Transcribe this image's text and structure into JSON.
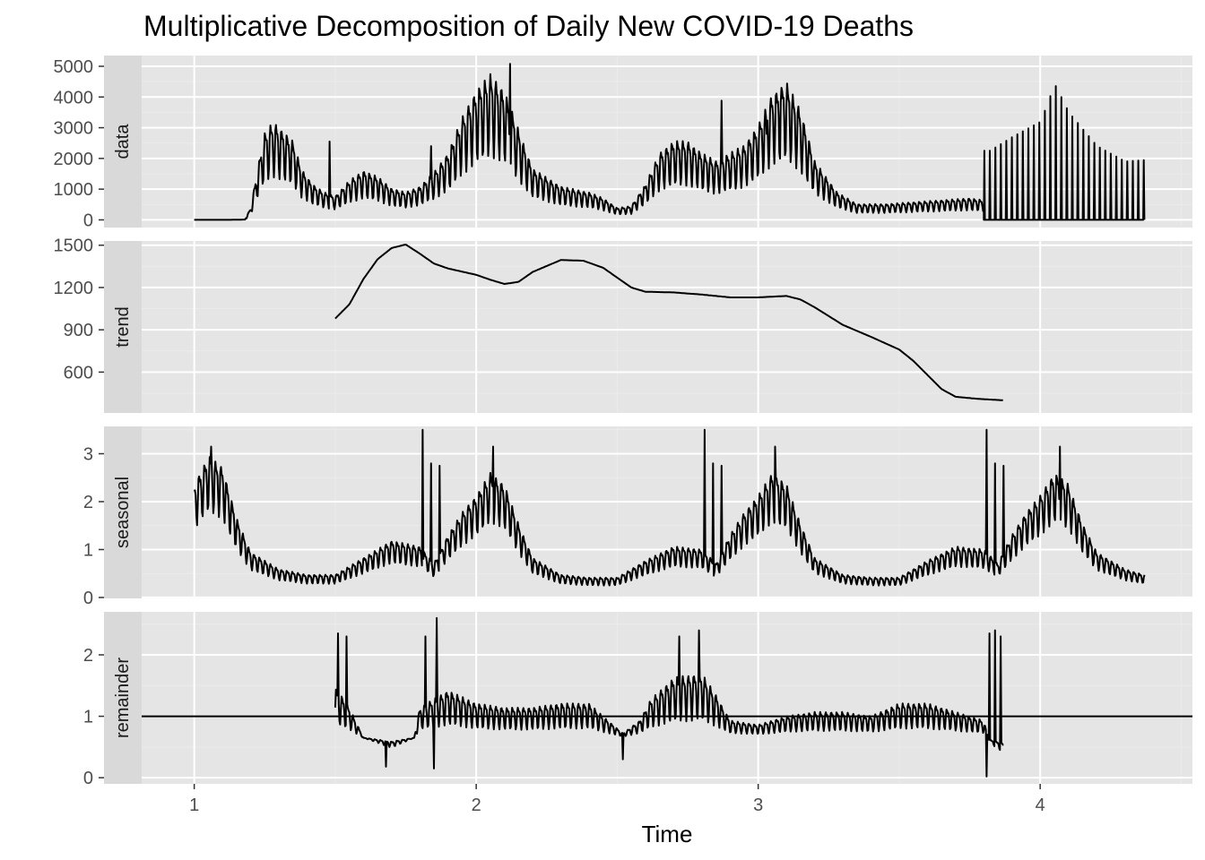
{
  "chart_data": {
    "type": "line",
    "title": "Multiplicative Decomposition of Daily New COVID-19 Deaths",
    "xlabel": "Time",
    "x_ticks": [
      1,
      2,
      3,
      4
    ],
    "xlim": [
      0.68,
      4.54
    ],
    "grid": true,
    "background": "#e5e5e5",
    "line_color": "#000000",
    "panels": [
      {
        "name": "data",
        "ylim": [
          -250,
          5350
        ],
        "y_ticks": [
          0,
          1000,
          2000,
          3000,
          4000,
          5000
        ],
        "mode": "series",
        "baseline": 0,
        "start_x": 1.0,
        "end_x": 4.37,
        "points": [
          [
            1.0,
            0
          ],
          [
            1.12,
            0
          ],
          [
            1.18,
            10
          ],
          [
            1.2,
            300
          ],
          [
            1.23,
            1500
          ],
          [
            1.25,
            2200
          ],
          [
            1.28,
            2500
          ],
          [
            1.31,
            2300
          ],
          [
            1.35,
            2000
          ],
          [
            1.38,
            1300
          ],
          [
            1.42,
            900
          ],
          [
            1.46,
            700
          ],
          [
            1.5,
            600
          ],
          [
            1.55,
            1000
          ],
          [
            1.6,
            1250
          ],
          [
            1.65,
            1100
          ],
          [
            1.7,
            800
          ],
          [
            1.75,
            700
          ],
          [
            1.8,
            850
          ],
          [
            1.85,
            1200
          ],
          [
            1.9,
            1700
          ],
          [
            1.95,
            2600
          ],
          [
            2.0,
            3300
          ],
          [
            2.05,
            3700
          ],
          [
            2.1,
            3300
          ],
          [
            2.15,
            2300
          ],
          [
            2.2,
            1300
          ],
          [
            2.3,
            850
          ],
          [
            2.4,
            700
          ],
          [
            2.45,
            550
          ],
          [
            2.5,
            300
          ],
          [
            2.55,
            350
          ],
          [
            2.6,
            900
          ],
          [
            2.65,
            1700
          ],
          [
            2.7,
            2000
          ],
          [
            2.75,
            2000
          ],
          [
            2.8,
            1700
          ],
          [
            2.85,
            1500
          ],
          [
            2.9,
            1700
          ],
          [
            2.95,
            1900
          ],
          [
            3.0,
            2400
          ],
          [
            3.05,
            3200
          ],
          [
            3.1,
            3500
          ],
          [
            3.15,
            2800
          ],
          [
            3.2,
            1500
          ],
          [
            3.28,
            700
          ],
          [
            3.35,
            400
          ],
          [
            3.45,
            400
          ],
          [
            3.55,
            450
          ],
          [
            3.65,
            500
          ],
          [
            3.75,
            550
          ],
          [
            3.8,
            500
          ]
        ],
        "oscillation": {
          "period": 0.0195,
          "amplitude": 0.62
        },
        "spikes": [
          [
            1.48,
            2550
          ],
          [
            1.84,
            2400
          ],
          [
            2.12,
            5080
          ],
          [
            2.87,
            3880
          ],
          [
            3.03,
            2800
          ],
          [
            3.08,
            3800
          ]
        ],
        "tail": {
          "start_x": 3.8,
          "end_x": 4.37,
          "period": 0.0195,
          "peaks": [
            [
              3.82,
              2250
            ],
            [
              3.9,
              2700
            ],
            [
              4.0,
              3200
            ],
            [
              4.05,
              4420
            ],
            [
              4.1,
              3500
            ],
            [
              4.2,
              2400
            ],
            [
              4.3,
              1900
            ],
            [
              4.37,
              1950
            ]
          ]
        }
      },
      {
        "name": "trend",
        "ylim": [
          310,
          1530
        ],
        "y_ticks": [
          600,
          900,
          1200,
          1500
        ],
        "mode": "smooth",
        "points": [
          [
            1.5,
            980
          ],
          [
            1.55,
            1080
          ],
          [
            1.6,
            1260
          ],
          [
            1.65,
            1400
          ],
          [
            1.7,
            1480
          ],
          [
            1.75,
            1505
          ],
          [
            1.8,
            1440
          ],
          [
            1.85,
            1370
          ],
          [
            1.9,
            1335
          ],
          [
            2.0,
            1290
          ],
          [
            2.05,
            1255
          ],
          [
            2.1,
            1225
          ],
          [
            2.15,
            1240
          ],
          [
            2.2,
            1310
          ],
          [
            2.3,
            1395
          ],
          [
            2.38,
            1390
          ],
          [
            2.45,
            1340
          ],
          [
            2.5,
            1270
          ],
          [
            2.55,
            1200
          ],
          [
            2.6,
            1170
          ],
          [
            2.7,
            1165
          ],
          [
            2.8,
            1150
          ],
          [
            2.9,
            1130
          ],
          [
            3.0,
            1130
          ],
          [
            3.1,
            1140
          ],
          [
            3.15,
            1115
          ],
          [
            3.2,
            1060
          ],
          [
            3.3,
            935
          ],
          [
            3.4,
            850
          ],
          [
            3.5,
            760
          ],
          [
            3.55,
            680
          ],
          [
            3.6,
            580
          ],
          [
            3.65,
            480
          ],
          [
            3.7,
            425
          ],
          [
            3.78,
            410
          ],
          [
            3.87,
            400
          ]
        ]
      },
      {
        "name": "seasonal",
        "ylim": [
          -0.02,
          3.57
        ],
        "y_ticks": [
          0,
          1,
          2,
          3
        ],
        "mode": "series",
        "baseline": null,
        "start_x": 1.0,
        "end_x": 4.37,
        "points": [
          [
            1.0,
            2.0
          ],
          [
            1.05,
            2.5
          ],
          [
            1.1,
            2.3
          ],
          [
            1.15,
            1.4
          ],
          [
            1.2,
            0.8
          ],
          [
            1.3,
            0.5
          ],
          [
            1.4,
            0.4
          ],
          [
            1.5,
            0.4
          ],
          [
            1.6,
            0.7
          ],
          [
            1.7,
            1.0
          ],
          [
            1.8,
            0.9
          ],
          [
            1.85,
            0.6
          ],
          [
            1.9,
            1.1
          ],
          [
            1.95,
            1.5
          ],
          [
            2.0,
            1.8
          ],
          [
            2.05,
            2.2
          ],
          [
            2.1,
            2.0
          ],
          [
            2.15,
            1.3
          ],
          [
            2.2,
            0.7
          ],
          [
            2.3,
            0.4
          ],
          [
            2.4,
            0.35
          ],
          [
            2.5,
            0.35
          ],
          [
            2.6,
            0.65
          ],
          [
            2.7,
            0.9
          ],
          [
            2.8,
            0.85
          ],
          [
            2.85,
            0.6
          ],
          [
            2.9,
            1.1
          ],
          [
            2.95,
            1.5
          ],
          [
            3.0,
            1.8
          ],
          [
            3.05,
            2.2
          ],
          [
            3.1,
            2.0
          ],
          [
            3.15,
            1.3
          ],
          [
            3.2,
            0.7
          ],
          [
            3.3,
            0.4
          ],
          [
            3.4,
            0.35
          ],
          [
            3.5,
            0.35
          ],
          [
            3.6,
            0.65
          ],
          [
            3.7,
            0.9
          ],
          [
            3.8,
            0.85
          ],
          [
            3.85,
            0.6
          ],
          [
            3.9,
            1.1
          ],
          [
            3.95,
            1.5
          ],
          [
            4.0,
            1.8
          ],
          [
            4.05,
            2.2
          ],
          [
            4.1,
            2.0
          ],
          [
            4.15,
            1.3
          ],
          [
            4.2,
            0.8
          ],
          [
            4.3,
            0.5
          ],
          [
            4.37,
            0.4
          ]
        ],
        "oscillation": {
          "period": 0.0195,
          "amplitude": 0.4
        },
        "spikes": [
          [
            1.81,
            3.5
          ],
          [
            1.84,
            2.8
          ],
          [
            1.87,
            2.75
          ],
          [
            2.81,
            3.5
          ],
          [
            2.84,
            2.8
          ],
          [
            2.87,
            2.75
          ],
          [
            3.81,
            3.5
          ],
          [
            3.84,
            2.8
          ],
          [
            3.87,
            2.75
          ],
          [
            1.06,
            3.15
          ],
          [
            2.06,
            3.15
          ],
          [
            3.06,
            3.15
          ],
          [
            4.07,
            3.15
          ]
        ]
      },
      {
        "name": "remainder",
        "ylim": [
          -0.1,
          2.7
        ],
        "y_ticks": [
          0,
          1,
          2
        ],
        "mode": "remainder",
        "baseline": 1,
        "start_x": 1.5,
        "end_x": 3.87,
        "points": [
          [
            1.5,
            1.25
          ],
          [
            1.55,
            1.0
          ],
          [
            1.6,
            0.65
          ],
          [
            1.7,
            0.55
          ],
          [
            1.78,
            0.65
          ],
          [
            1.8,
            1.0
          ],
          [
            1.9,
            1.2
          ],
          [
            2.0,
            1.05
          ],
          [
            2.1,
            1.0
          ],
          [
            2.2,
            1.0
          ],
          [
            2.3,
            1.05
          ],
          [
            2.4,
            1.05
          ],
          [
            2.45,
            0.9
          ],
          [
            2.52,
            0.7
          ],
          [
            2.58,
            0.85
          ],
          [
            2.62,
            1.1
          ],
          [
            2.7,
            1.35
          ],
          [
            2.8,
            1.4
          ],
          [
            2.85,
            1.15
          ],
          [
            2.9,
            0.85
          ],
          [
            3.0,
            0.8
          ],
          [
            3.1,
            0.9
          ],
          [
            3.2,
            0.95
          ],
          [
            3.3,
            0.95
          ],
          [
            3.4,
            0.9
          ],
          [
            3.5,
            1.05
          ],
          [
            3.6,
            1.05
          ],
          [
            3.7,
            0.95
          ],
          [
            3.8,
            0.85
          ],
          [
            3.82,
            0.6
          ],
          [
            3.87,
            0.5
          ]
        ],
        "oscillation": {
          "period": 0.0195,
          "amplitude": 0.55
        },
        "spikes": [
          [
            1.51,
            2.35
          ],
          [
            1.54,
            2.3
          ],
          [
            1.82,
            2.3
          ],
          [
            1.86,
            2.6
          ],
          [
            2.72,
            2.3
          ],
          [
            2.79,
            2.4
          ],
          [
            3.82,
            2.35
          ],
          [
            3.84,
            2.4
          ],
          [
            3.86,
            2.3
          ],
          [
            1.68,
            0.18
          ],
          [
            1.85,
            0.15
          ],
          [
            2.52,
            0.3
          ],
          [
            3.81,
            0.02
          ],
          [
            3.86,
            0.02
          ]
        ]
      }
    ]
  }
}
